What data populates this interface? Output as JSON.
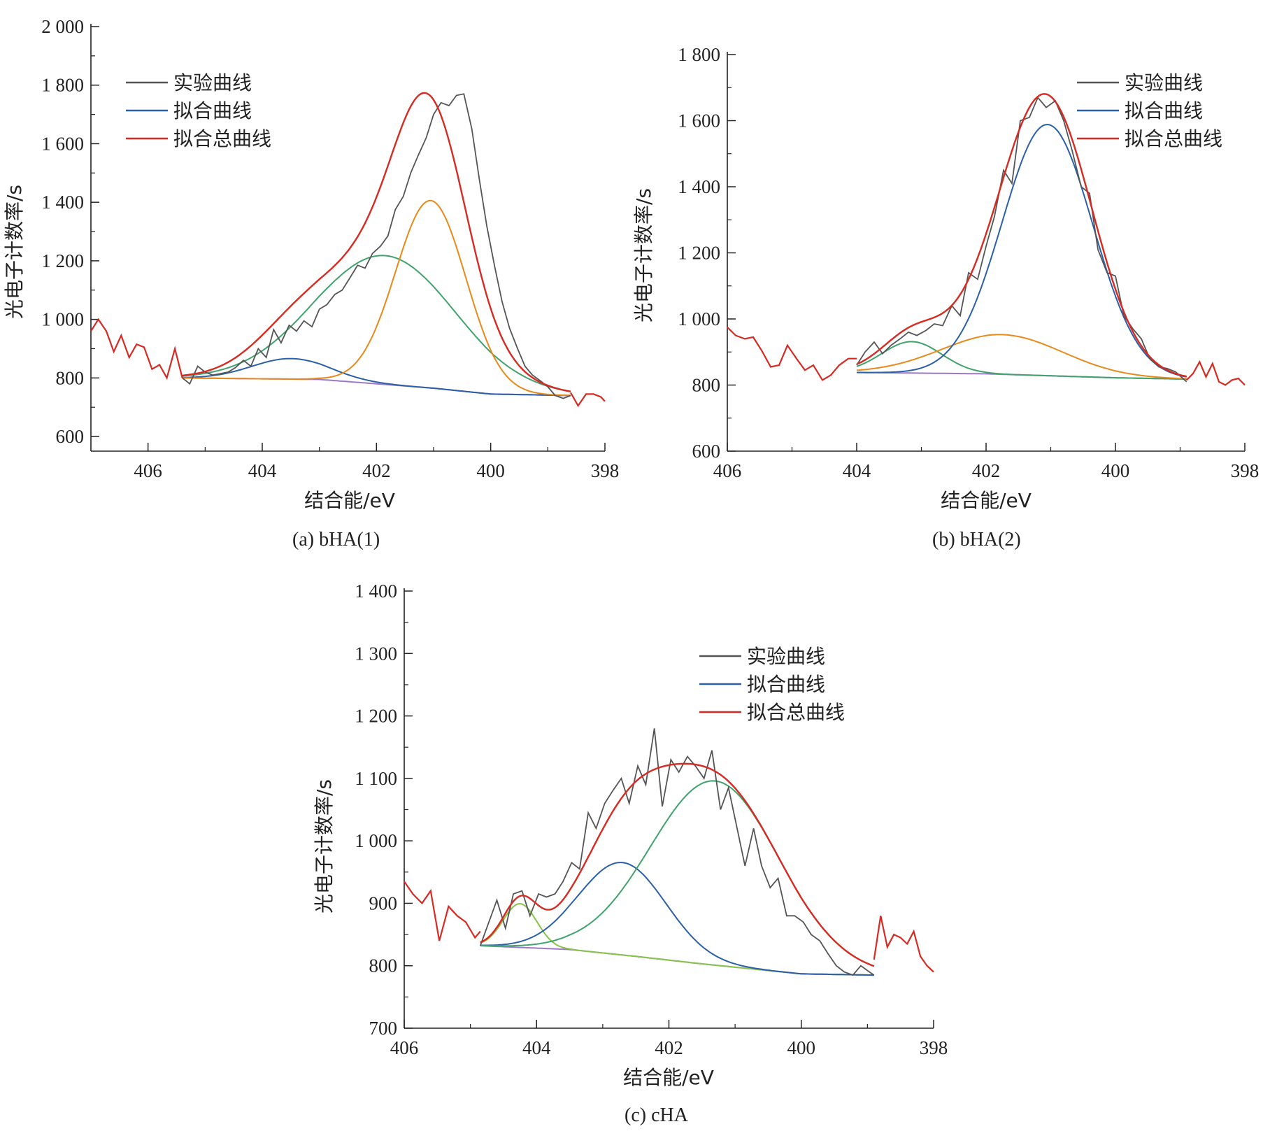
{
  "chart_data": [
    {
      "type": "line",
      "panel_caption": "(a) bHA(1)",
      "xlabel": "结合能/eV",
      "ylabel": "光电子计数率/s",
      "xlim": [
        407,
        398
      ],
      "ylim": [
        550,
        2000
      ],
      "x_ticks": [
        406,
        404,
        402,
        400,
        398
      ],
      "x_tick_labels": [
        "406",
        "404",
        "402",
        "400",
        "398"
      ],
      "y_ticks": [
        600,
        800,
        1000,
        1200,
        1400,
        1600,
        1800,
        2000
      ],
      "y_tick_labels": [
        "600",
        "800",
        "1 000",
        "1 200",
        "1 400",
        "1 600",
        "1 800",
        "2 000"
      ],
      "legend": [
        {
          "label": "实验曲线",
          "color": "#555555"
        },
        {
          "label": "拟合曲线",
          "color": "#2b5fa8"
        },
        {
          "label": "拟合总曲线",
          "color": "#d62a22"
        }
      ],
      "legend_position": "top-left",
      "fit_range": [
        405.4,
        398.6
      ],
      "baseline": {
        "color": "#9b79c6",
        "points": [
          [
            405.4,
            800
          ],
          [
            403.0,
            795
          ],
          [
            401.0,
            765
          ],
          [
            400.0,
            745
          ],
          [
            398.6,
            740
          ]
        ]
      },
      "components": [
        {
          "color": "#2b5fa8",
          "center": 403.5,
          "height": 70,
          "fwhm": 1.6
        },
        {
          "color": "#3fa36b",
          "center": 401.85,
          "height": 440,
          "fwhm": 2.9
        },
        {
          "color": "#e8891a",
          "center": 401.05,
          "height": 640,
          "fwhm": 1.45
        }
      ],
      "series": [
        {
          "name": "实验曲线",
          "color": "#555555",
          "x": [
            405.4,
            405.27,
            405.13,
            405.0,
            404.87,
            404.73,
            404.6,
            404.47,
            404.33,
            404.2,
            404.07,
            403.93,
            403.8,
            403.67,
            403.53,
            403.4,
            403.27,
            403.13,
            403.0,
            402.87,
            402.73,
            402.6,
            402.47,
            402.33,
            402.2,
            402.07,
            401.93,
            401.8,
            401.67,
            401.53,
            401.4,
            401.27,
            401.13,
            401.0,
            400.87,
            400.73,
            400.6,
            400.47,
            400.33,
            400.2,
            400.07,
            399.93,
            399.8,
            399.67,
            399.53,
            399.4,
            399.27,
            399.13,
            399.0,
            398.87,
            398.73,
            398.6
          ],
          "y": [
            800,
            780,
            840,
            820,
            810,
            815,
            820,
            835,
            860,
            840,
            900,
            870,
            965,
            920,
            980,
            960,
            995,
            975,
            1035,
            1050,
            1085,
            1100,
            1140,
            1185,
            1175,
            1225,
            1250,
            1285,
            1375,
            1420,
            1500,
            1560,
            1620,
            1700,
            1740,
            1730,
            1765,
            1770,
            1650,
            1480,
            1320,
            1180,
            1060,
            970,
            900,
            840,
            810,
            790,
            770,
            740,
            730,
            740
          ]
        },
        {
          "name": "拟合总曲线",
          "color": "#d62a22",
          "x": [
            407.0,
            406.87,
            406.73,
            406.6,
            406.47,
            406.33,
            406.2,
            406.07,
            405.93,
            405.8,
            405.67,
            405.53,
            405.4
          ],
          "y": [
            960,
            1000,
            960,
            890,
            945,
            870,
            915,
            905,
            830,
            845,
            800,
            900,
            800
          ]
        },
        {
          "name": "拟合总曲线",
          "color": "#d62a22",
          "x": [
            398.6,
            398.47,
            398.33,
            398.2,
            398.07,
            398.0
          ],
          "y": [
            750,
            705,
            745,
            745,
            735,
            720
          ]
        }
      ]
    },
    {
      "type": "line",
      "panel_caption": "(b) bHA(2)",
      "xlabel": "结合能/eV",
      "ylabel": "光电子计数率/s",
      "xlim": [
        406,
        398
      ],
      "ylim": [
        600,
        1800
      ],
      "x_ticks": [
        406,
        404,
        402,
        400,
        398
      ],
      "x_tick_labels": [
        "406",
        "404",
        "402",
        "400",
        "398"
      ],
      "y_ticks": [
        600,
        800,
        1000,
        1200,
        1400,
        1600,
        1800
      ],
      "y_tick_labels": [
        "600",
        "800",
        "1 000",
        "1 200",
        "1 400",
        "1 600",
        "1 800"
      ],
      "legend": [
        {
          "label": "实验曲线",
          "color": "#555555"
        },
        {
          "label": "拟合曲线",
          "color": "#2b5fa8"
        },
        {
          "label": "拟合总曲线",
          "color": "#d62a22"
        }
      ],
      "legend_position": "top-right",
      "fit_range": [
        404.0,
        398.9
      ],
      "baseline": {
        "color": "#9b79c6",
        "points": [
          [
            404.0,
            838
          ],
          [
            402.0,
            834
          ],
          [
            400.0,
            822
          ],
          [
            398.9,
            818
          ]
        ]
      },
      "components": [
        {
          "color": "#3fa36b",
          "center": 403.15,
          "height": 95,
          "fwhm": 1.1
        },
        {
          "color": "#e8891a",
          "center": 401.75,
          "height": 120,
          "fwhm": 2.2
        },
        {
          "color": "#2b5fa8",
          "center": 401.05,
          "height": 760,
          "fwhm": 1.65
        }
      ],
      "series": [
        {
          "name": "实验曲线",
          "color": "#555555",
          "x": [
            404.0,
            403.87,
            403.73,
            403.6,
            403.47,
            403.33,
            403.2,
            403.07,
            402.93,
            402.8,
            402.67,
            402.53,
            402.4,
            402.27,
            402.13,
            402.0,
            401.87,
            401.73,
            401.6,
            401.47,
            401.33,
            401.2,
            401.07,
            400.93,
            400.8,
            400.67,
            400.53,
            400.4,
            400.27,
            400.13,
            400.0,
            399.87,
            399.73,
            399.6,
            399.47,
            399.33,
            399.2,
            399.07,
            398.9
          ],
          "y": [
            860,
            900,
            930,
            895,
            920,
            940,
            960,
            950,
            965,
            985,
            980,
            1040,
            1010,
            1140,
            1120,
            1220,
            1310,
            1450,
            1410,
            1600,
            1610,
            1670,
            1640,
            1660,
            1600,
            1510,
            1400,
            1380,
            1210,
            1140,
            1130,
            1010,
            970,
            940,
            880,
            855,
            850,
            840,
            810
          ]
        },
        {
          "name": "拟合总曲线",
          "color": "#d62a22",
          "x": [
            406.0,
            405.87,
            405.73,
            405.6,
            405.47,
            405.33,
            405.2,
            405.07,
            404.93,
            404.8,
            404.67,
            404.53,
            404.4,
            404.27,
            404.13,
            404.0
          ],
          "y": [
            975,
            950,
            940,
            945,
            905,
            855,
            860,
            920,
            880,
            845,
            860,
            815,
            830,
            860,
            880,
            880
          ]
        },
        {
          "name": "拟合总曲线",
          "color": "#d62a22",
          "x": [
            398.9,
            398.8,
            398.7,
            398.6,
            398.5,
            398.4,
            398.3,
            398.2,
            398.1,
            398.0
          ],
          "y": [
            815,
            835,
            870,
            825,
            865,
            810,
            800,
            815,
            820,
            800
          ]
        }
      ]
    },
    {
      "type": "line",
      "panel_caption": "(c) cHA",
      "xlabel": "结合能/eV",
      "ylabel": "光电子计数率/s",
      "xlim": [
        406,
        398
      ],
      "ylim": [
        700,
        1400
      ],
      "x_ticks": [
        406,
        404,
        402,
        400,
        398
      ],
      "x_tick_labels": [
        "406",
        "404",
        "402",
        "400",
        "398"
      ],
      "y_ticks": [
        700,
        800,
        900,
        1000,
        1100,
        1200,
        1300,
        1400
      ],
      "y_tick_labels": [
        "700",
        "800",
        "900",
        "1 000",
        "1 100",
        "1 200",
        "1 300",
        "1 400"
      ],
      "legend": [
        {
          "label": "实验曲线",
          "color": "#555555"
        },
        {
          "label": "拟合曲线",
          "color": "#2b5fa8"
        },
        {
          "label": "拟合总曲线",
          "color": "#d62a22"
        }
      ],
      "legend_position": "top-right",
      "fit_range": [
        404.85,
        398.9
      ],
      "baseline": {
        "color": "#9b79c6",
        "points": [
          [
            404.85,
            832
          ],
          [
            403.5,
            826
          ],
          [
            402.5,
            815
          ],
          [
            401.5,
            803
          ],
          [
            400.0,
            787
          ],
          [
            398.9,
            785
          ]
        ]
      },
      "components": [
        {
          "color": "#88c34a",
          "center": 404.25,
          "height": 70,
          "fwhm": 0.6
        },
        {
          "color": "#2b5fa8",
          "center": 402.7,
          "height": 148,
          "fwhm": 1.55
        },
        {
          "color": "#3fa36b",
          "center": 401.3,
          "height": 295,
          "fwhm": 2.3
        }
      ],
      "series": [
        {
          "name": "实验曲线",
          "color": "#555555",
          "x": [
            404.85,
            404.72,
            404.6,
            404.47,
            404.35,
            404.22,
            404.1,
            403.97,
            403.85,
            403.72,
            403.6,
            403.47,
            403.35,
            403.22,
            403.1,
            402.97,
            402.85,
            402.72,
            402.6,
            402.47,
            402.35,
            402.22,
            402.1,
            401.97,
            401.85,
            401.72,
            401.6,
            401.47,
            401.35,
            401.22,
            401.1,
            400.97,
            400.85,
            400.72,
            400.6,
            400.47,
            400.35,
            400.22,
            400.1,
            399.97,
            399.85,
            399.72,
            399.6,
            399.47,
            399.35,
            399.22,
            399.1,
            398.97,
            398.9
          ],
          "y": [
            832,
            870,
            905,
            860,
            915,
            920,
            880,
            915,
            910,
            915,
            935,
            965,
            955,
            1045,
            1020,
            1060,
            1080,
            1100,
            1060,
            1120,
            1090,
            1180,
            1055,
            1130,
            1110,
            1135,
            1120,
            1100,
            1145,
            1050,
            1085,
            1020,
            960,
            1020,
            960,
            925,
            940,
            880,
            880,
            870,
            850,
            840,
            820,
            800,
            790,
            785,
            800,
            790,
            785
          ]
        },
        {
          "name": "拟合总曲线",
          "color": "#d62a22",
          "x": [
            406.0,
            405.87,
            405.73,
            405.6,
            405.47,
            405.33,
            405.2,
            405.07,
            404.93,
            404.85
          ],
          "y": [
            935,
            915,
            900,
            920,
            840,
            895,
            880,
            870,
            845,
            855
          ]
        },
        {
          "name": "拟合总曲线",
          "color": "#d62a22",
          "x": [
            398.9,
            398.8,
            398.7,
            398.6,
            398.5,
            398.4,
            398.3,
            398.2,
            398.1,
            398.0
          ],
          "y": [
            810,
            880,
            830,
            850,
            845,
            835,
            855,
            815,
            800,
            790
          ]
        }
      ]
    }
  ]
}
